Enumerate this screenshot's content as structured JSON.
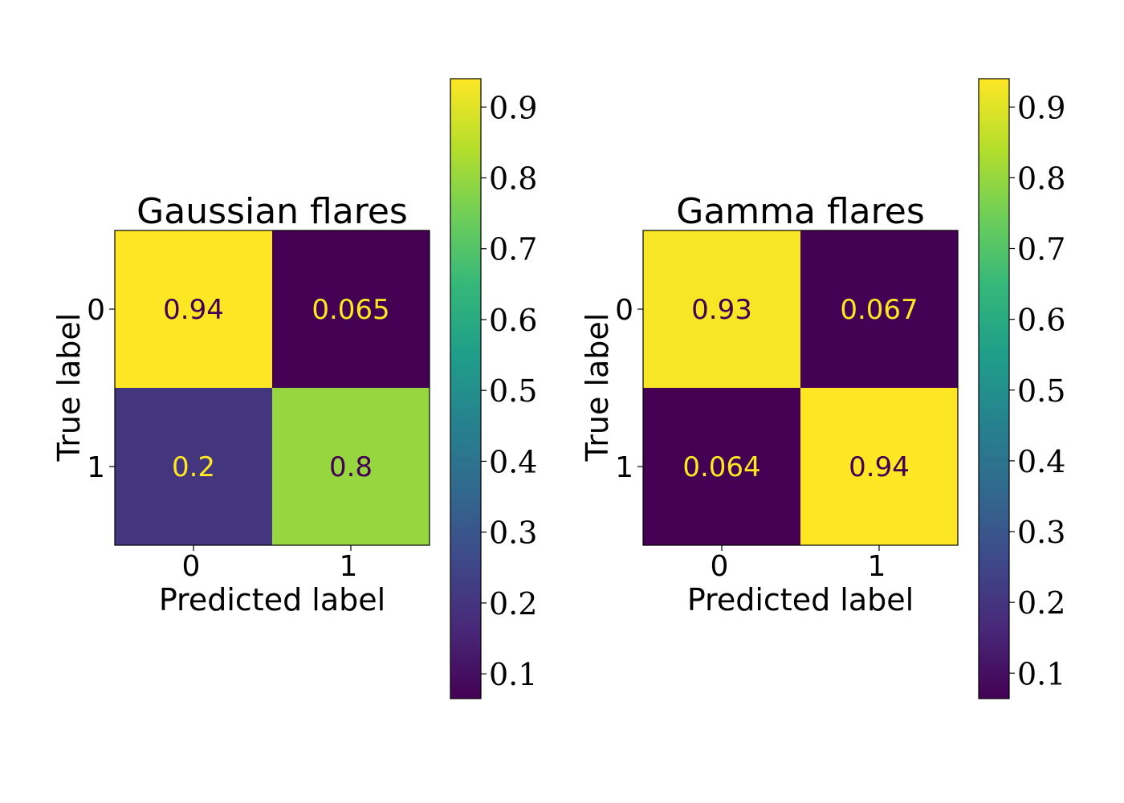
{
  "colors": {
    "viridis": [
      "#440154",
      "#482878",
      "#3e4989",
      "#31688e",
      "#26828e",
      "#1f9e89",
      "#35b779",
      "#6ece58",
      "#b5de2b",
      "#fde725"
    ],
    "text_on_dark": "#fde725",
    "text_on_light": "#440154",
    "axis": "#000000",
    "background": "#ffffff"
  },
  "chart_data": [
    {
      "type": "heatmap",
      "title": "Gaussian flares",
      "xlabel": "Predicted label",
      "ylabel": "True label",
      "x_categories": [
        "0",
        "1"
      ],
      "y_categories": [
        "0",
        "1"
      ],
      "values": [
        [
          0.94,
          0.065
        ],
        [
          0.2,
          0.8
        ]
      ],
      "cell_labels": [
        [
          "0.94",
          "0.065"
        ],
        [
          "0.2",
          "0.8"
        ]
      ],
      "colorbar": {
        "vmin": 0.065,
        "vmax": 0.94,
        "ticks": [
          0.1,
          0.2,
          0.3,
          0.4,
          0.5,
          0.6,
          0.7,
          0.8,
          0.9
        ],
        "tick_labels": [
          "0.1",
          "0.2",
          "0.3",
          "0.4",
          "0.5",
          "0.6",
          "0.7",
          "0.8",
          "0.9"
        ]
      }
    },
    {
      "type": "heatmap",
      "title": "Gamma flares",
      "xlabel": "Predicted label",
      "ylabel": "True label",
      "x_categories": [
        "0",
        "1"
      ],
      "y_categories": [
        "0",
        "1"
      ],
      "values": [
        [
          0.93,
          0.067
        ],
        [
          0.064,
          0.94
        ]
      ],
      "cell_labels": [
        [
          "0.93",
          "0.067"
        ],
        [
          "0.064",
          "0.94"
        ]
      ],
      "colorbar": {
        "vmin": 0.064,
        "vmax": 0.94,
        "ticks": [
          0.1,
          0.2,
          0.3,
          0.4,
          0.5,
          0.6,
          0.7,
          0.8,
          0.9
        ],
        "tick_labels": [
          "0.1",
          "0.2",
          "0.3",
          "0.4",
          "0.5",
          "0.6",
          "0.7",
          "0.8",
          "0.9"
        ]
      }
    }
  ]
}
